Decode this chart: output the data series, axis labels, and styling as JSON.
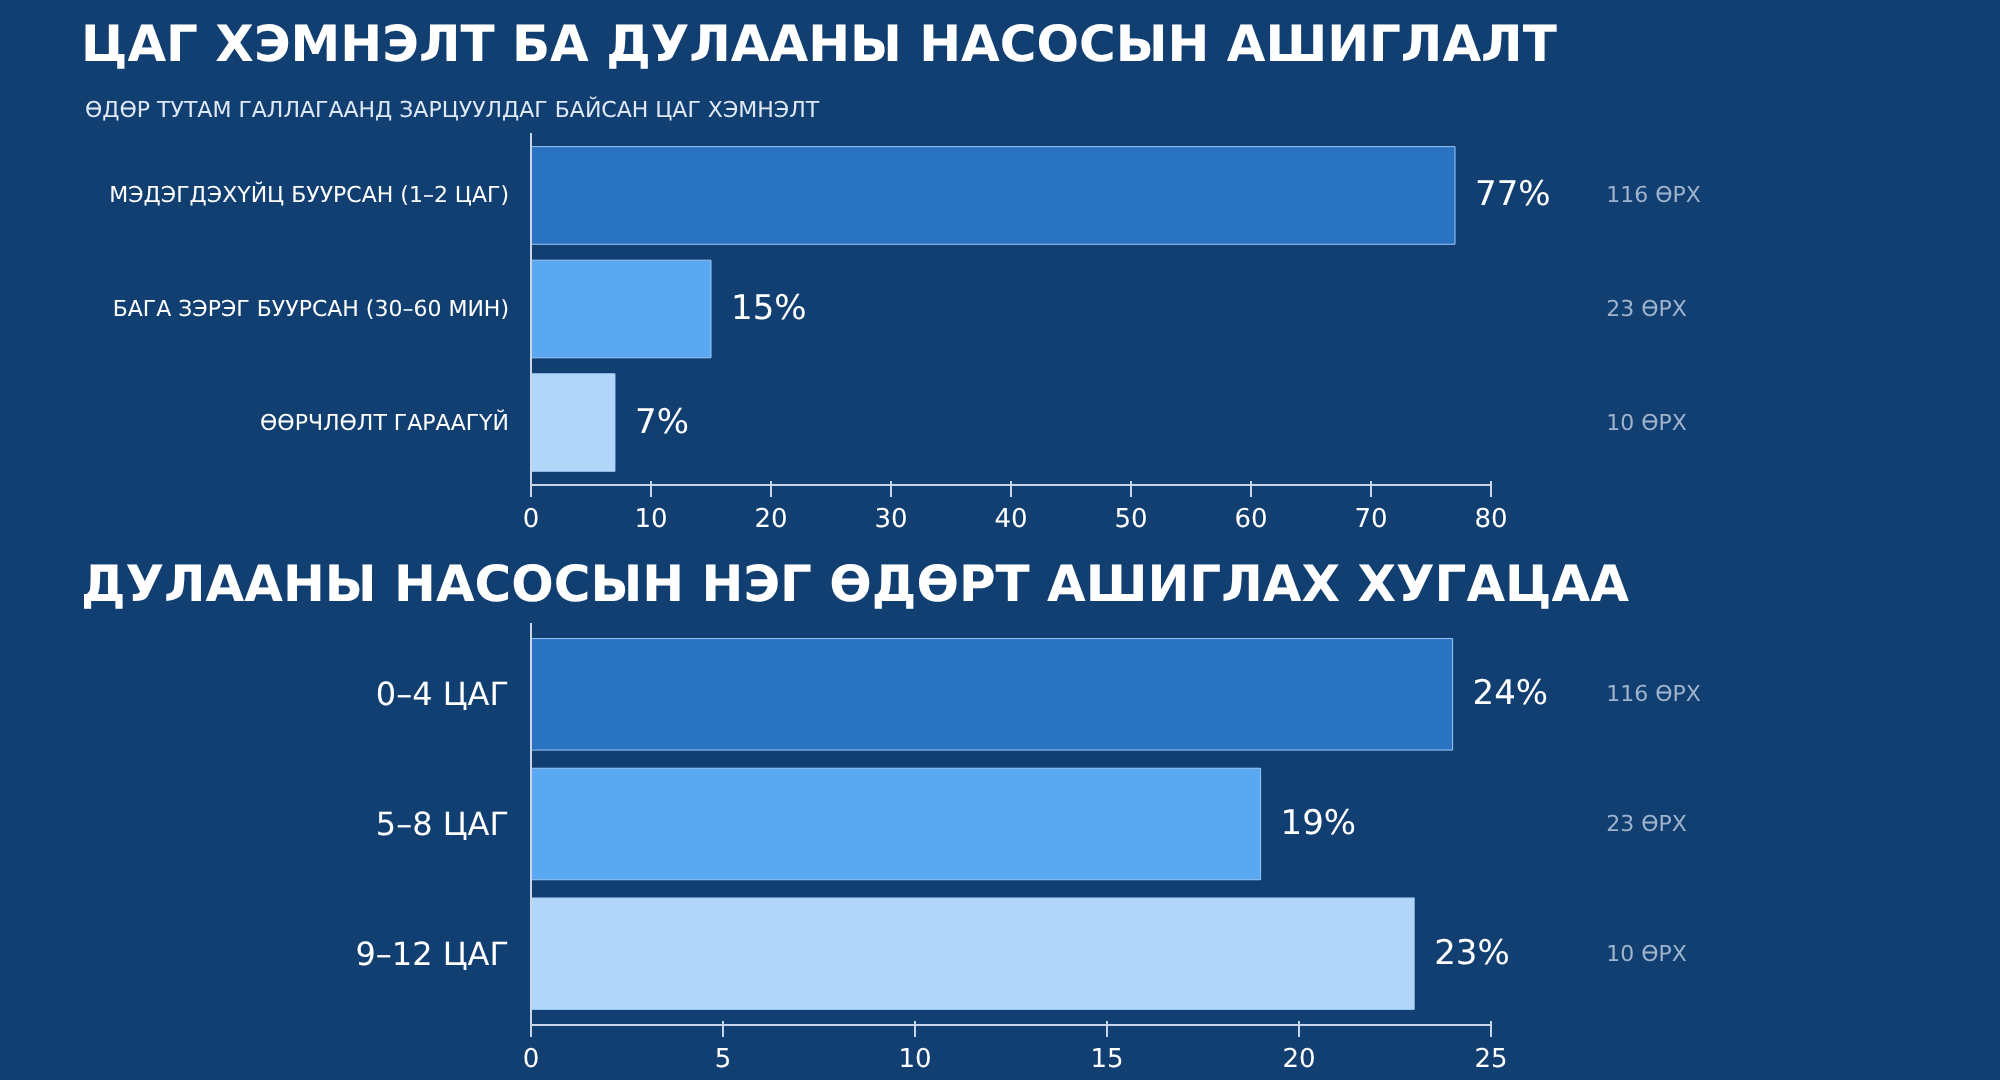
{
  "chart_data": [
    {
      "type": "bar",
      "orientation": "horizontal",
      "title": "ЦАГ ХЭМНЭЛТ БА ДУЛААНЫ НАСОСЫН АШИГЛАЛТ",
      "subtitle": "ӨДӨР ТУТАМ ГАЛЛАГААНД ЗАРЦУУЛДАГ БАЙСАН ЦАГ ХЭМНЭЛТ",
      "categories": [
        "МЭДЭГДЭХҮЙЦ БУУРСАН (1–2 ЦАГ)",
        "БАГА ЗЭРЭГ БУУРСАН (30–60 МИН)",
        "ӨӨРЧЛӨЛТ ГАРААГҮЙ"
      ],
      "values": [
        77,
        15,
        7
      ],
      "value_labels": [
        "77%",
        "15%",
        "7%"
      ],
      "colors": [
        "#2a72c2",
        "#5aa8f2",
        "#b2d6fa"
      ],
      "xlim": [
        0,
        80
      ],
      "xticks": [
        0,
        10,
        20,
        30,
        40,
        50,
        60,
        70,
        80
      ],
      "annotations": [
        "116 ӨРХ",
        "23 ӨРХ",
        "10 ӨРХ"
      ]
    },
    {
      "type": "bar",
      "orientation": "horizontal",
      "title": "ДУЛААНЫ НАСОСЫН НЭГ ӨДӨРТ АШИГЛАХ ХУГАЦАА",
      "categories": [
        "0–4 ЦАГ",
        "5–8 ЦАГ",
        "9–12 ЦАГ"
      ],
      "values": [
        24,
        19,
        23
      ],
      "value_labels": [
        "24%",
        "19%",
        "23%"
      ],
      "colors": [
        "#2a72c2",
        "#5aa8f2",
        "#b2d6fa"
      ],
      "xlim": [
        0,
        25
      ],
      "xticks": [
        0,
        5,
        10,
        15,
        20,
        25
      ],
      "annotations": [
        "116 ӨРХ",
        "23 ӨРХ",
        "10 ӨРХ"
      ]
    }
  ]
}
